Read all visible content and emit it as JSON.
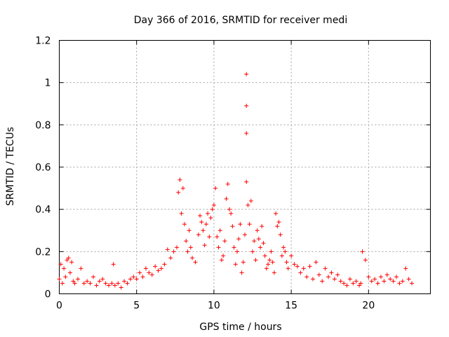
{
  "chart_data": {
    "type": "scatter",
    "title": "Day 366 of 2016, SRMTID for receiver medi",
    "xlabel": "GPS time / hours",
    "ylabel": "SRMTID / TECUs",
    "xlim": [
      0,
      24
    ],
    "ylim": [
      0,
      1.2
    ],
    "xticks": [
      0,
      5,
      10,
      15,
      20
    ],
    "yticks": [
      0,
      0.2,
      0.4,
      0.6,
      0.8,
      1,
      1.2
    ],
    "xtick_labels": [
      "0",
      "5",
      "10",
      "15",
      "20"
    ],
    "ytick_labels": [
      "0",
      "0.2",
      "0.4",
      "0.6",
      "0.8",
      "1",
      "1.2"
    ],
    "grid": true,
    "marker": "+",
    "color": "#ff0000",
    "series": [
      {
        "name": "SRMTID",
        "x": [
          0.0,
          0.1,
          0.2,
          0.3,
          0.4,
          0.5,
          0.6,
          0.7,
          0.8,
          0.9,
          1.0,
          1.2,
          1.4,
          1.6,
          1.8,
          2.0,
          2.2,
          2.4,
          2.6,
          2.8,
          3.0,
          3.2,
          3.4,
          3.5,
          3.6,
          3.8,
          4.0,
          4.2,
          4.4,
          4.6,
          4.8,
          5.0,
          5.2,
          5.4,
          5.6,
          5.8,
          6.0,
          6.2,
          6.4,
          6.6,
          6.8,
          7.0,
          7.2,
          7.4,
          7.6,
          7.7,
          7.8,
          7.9,
          8.0,
          8.1,
          8.2,
          8.3,
          8.4,
          8.5,
          8.6,
          8.8,
          9.0,
          9.1,
          9.2,
          9.3,
          9.4,
          9.5,
          9.6,
          9.7,
          9.8,
          9.9,
          10.0,
          10.1,
          10.2,
          10.3,
          10.4,
          10.5,
          10.6,
          10.7,
          10.8,
          10.9,
          11.0,
          11.1,
          11.2,
          11.3,
          11.4,
          11.5,
          11.6,
          11.7,
          11.8,
          11.9,
          12.0,
          12.1,
          12.1,
          12.1,
          12.1,
          12.2,
          12.3,
          12.4,
          12.5,
          12.6,
          12.7,
          12.8,
          12.9,
          13.0,
          13.1,
          13.2,
          13.3,
          13.4,
          13.5,
          13.6,
          13.7,
          13.8,
          13.9,
          14.0,
          14.1,
          14.2,
          14.3,
          14.4,
          14.5,
          14.6,
          14.7,
          14.8,
          15.0,
          15.2,
          15.4,
          15.6,
          15.8,
          16.0,
          16.2,
          16.4,
          16.6,
          16.8,
          17.0,
          17.2,
          17.4,
          17.6,
          17.8,
          18.0,
          18.2,
          18.4,
          18.6,
          18.8,
          19.0,
          19.2,
          19.4,
          19.5,
          19.6,
          19.8,
          20.0,
          20.2,
          20.4,
          20.6,
          20.8,
          21.0,
          21.2,
          21.4,
          21.6,
          21.8,
          22.0,
          22.2,
          22.4,
          22.6,
          22.8
        ],
        "y": [
          0.07,
          0.14,
          0.05,
          0.12,
          0.08,
          0.16,
          0.17,
          0.1,
          0.15,
          0.06,
          0.05,
          0.07,
          0.12,
          0.05,
          0.06,
          0.05,
          0.08,
          0.04,
          0.06,
          0.07,
          0.05,
          0.04,
          0.05,
          0.14,
          0.04,
          0.05,
          0.03,
          0.06,
          0.05,
          0.07,
          0.08,
          0.07,
          0.1,
          0.08,
          0.12,
          0.1,
          0.09,
          0.13,
          0.11,
          0.12,
          0.14,
          0.21,
          0.17,
          0.2,
          0.22,
          0.48,
          0.54,
          0.38,
          0.5,
          0.33,
          0.25,
          0.2,
          0.3,
          0.22,
          0.17,
          0.15,
          0.28,
          0.37,
          0.34,
          0.3,
          0.23,
          0.33,
          0.38,
          0.27,
          0.36,
          0.4,
          0.42,
          0.5,
          0.27,
          0.22,
          0.3,
          0.16,
          0.18,
          0.25,
          0.45,
          0.52,
          0.4,
          0.38,
          0.32,
          0.22,
          0.14,
          0.2,
          0.26,
          0.33,
          0.1,
          0.15,
          0.28,
          1.04,
          0.89,
          0.76,
          0.53,
          0.42,
          0.33,
          0.44,
          0.2,
          0.25,
          0.16,
          0.3,
          0.26,
          0.22,
          0.32,
          0.24,
          0.18,
          0.12,
          0.14,
          0.16,
          0.2,
          0.15,
          0.1,
          0.38,
          0.32,
          0.34,
          0.28,
          0.18,
          0.22,
          0.2,
          0.15,
          0.12,
          0.18,
          0.14,
          0.13,
          0.1,
          0.12,
          0.08,
          0.13,
          0.07,
          0.15,
          0.09,
          0.06,
          0.12,
          0.08,
          0.1,
          0.07,
          0.09,
          0.06,
          0.05,
          0.04,
          0.07,
          0.05,
          0.06,
          0.04,
          0.05,
          0.2,
          0.16,
          0.08,
          0.06,
          0.07,
          0.05,
          0.08,
          0.06,
          0.09,
          0.07,
          0.06,
          0.08,
          0.05,
          0.06,
          0.12,
          0.07,
          0.05
        ]
      }
    ]
  }
}
